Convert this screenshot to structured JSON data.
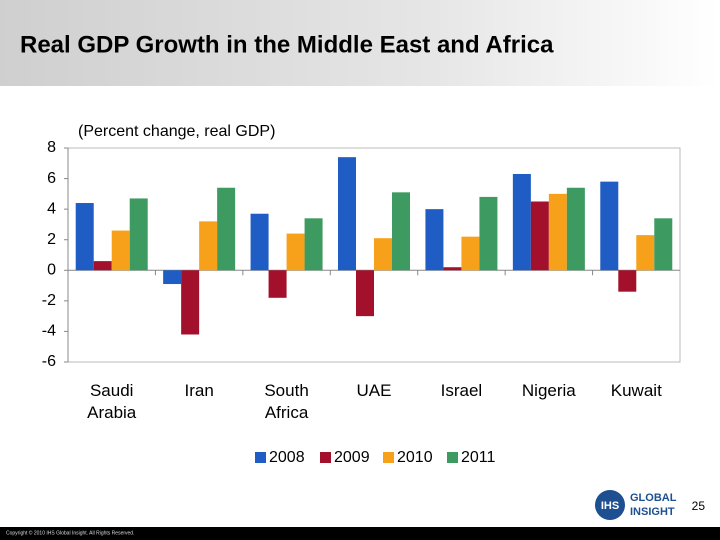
{
  "chart_data": {
    "type": "bar",
    "title": "Real GDP Growth in the Middle East and Africa",
    "subtitle": "(Percent change, real GDP)",
    "categories": [
      "Saudi Arabia",
      "Iran",
      "South Africa",
      "UAE",
      "Israel",
      "Nigeria",
      "Kuwait"
    ],
    "series": [
      {
        "name": "2008",
        "color": "#1f5cc4",
        "values": [
          4.4,
          -0.9,
          3.7,
          7.4,
          4.0,
          6.3,
          5.8
        ]
      },
      {
        "name": "2009",
        "color": "#a3102c",
        "values": [
          0.6,
          -4.2,
          -1.8,
          -3.0,
          0.2,
          4.5,
          -1.4
        ]
      },
      {
        "name": "2010",
        "color": "#f7a11a",
        "values": [
          2.6,
          3.2,
          2.4,
          2.1,
          2.2,
          5.0,
          2.3
        ]
      },
      {
        "name": "2011",
        "color": "#3d9a60",
        "values": [
          4.7,
          5.4,
          3.4,
          5.1,
          4.8,
          5.4,
          3.4
        ]
      }
    ],
    "ylim": [
      -6,
      8
    ],
    "yticks": [
      -6,
      -4,
      -2,
      0,
      2,
      4,
      6,
      8
    ],
    "grid": false,
    "legend": "bottom"
  },
  "slide": {
    "page_number": "25",
    "logo_mark": "IHS",
    "logo_line1": "GLOBAL",
    "logo_line2": "INSIGHT",
    "copyright": "Copyright © 2010 IHS Global Insight. All Rights Reserved."
  }
}
